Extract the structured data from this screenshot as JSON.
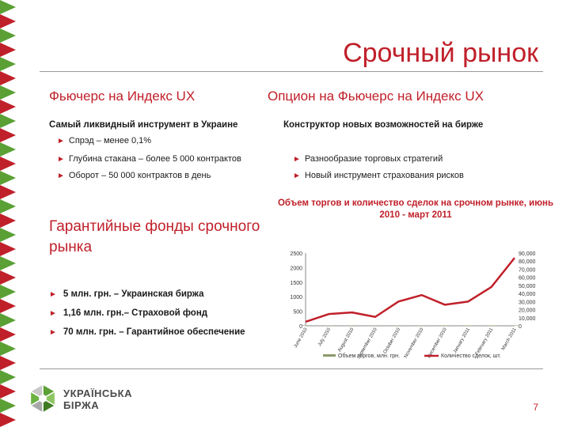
{
  "slide": {
    "title": "Срочный рынок",
    "page_number": "7"
  },
  "left": {
    "heading": "Фьючерс на Индекс UX",
    "subtitle": "Самый ликвидный инструмент в Украине",
    "bullets": [
      "Спрэд – менее 0,1%",
      "Глубина стакана – более 5 000 контрактов",
      "Оборот – 50 000 контрактов в день"
    ]
  },
  "right": {
    "heading": "Опцион на Фьючерс на Индекс UX",
    "subtitle": "Конструктор новых возможностей  на  бирже",
    "bullets": [
      "Разнообразие торговых стратегий",
      "Новый инструмент страхования рисков"
    ]
  },
  "funds": {
    "title": "Гарантийные фонды срочного рынка",
    "bullets": [
      "5 млн. грн. – Украинская биржа",
      "1,16 млн. грн.– Страховой фонд",
      "70 млн. грн. – Гарантийное обеспечение"
    ]
  },
  "chart_data": {
    "type": "bar",
    "title": "Объем торгов и количество сделок на срочном рынке, июнь 2010 - март 2011",
    "categories": [
      "June 2010",
      "July 2010",
      "August 2010",
      "September 2010",
      "October 2010",
      "November 2010",
      "December 2010",
      "January 2011",
      "February 2011",
      "March 2011"
    ],
    "ylim_left": [
      0,
      2500
    ],
    "yticks_left": [
      "0",
      "500",
      "1000",
      "1500",
      "2000",
      "2500"
    ],
    "ylim_right": [
      0,
      90000
    ],
    "yticks_right": [
      "0",
      "10,000",
      "20,000",
      "30,000",
      "40,000",
      "50,000",
      "60,000",
      "70,000",
      "80,000",
      "90,000"
    ],
    "series": [
      {
        "name": "Объем торгов, млн. грн.",
        "axis": "left",
        "color": "#8a9a6a",
        "values": [
          0,
          0,
          0,
          0,
          0,
          0,
          0,
          0,
          0,
          0
        ]
      },
      {
        "name": "Количество сделок, шт.",
        "axis": "right",
        "color": "#c0202a",
        "values": [
          5000,
          14500,
          16500,
          11000,
          30000,
          38000,
          26000,
          30000,
          48000,
          84000
        ]
      }
    ],
    "legend": "bottom"
  },
  "logo": {
    "line1": "УКРАЇНСЬКА",
    "line2": "БІРЖА"
  },
  "colors": {
    "accent": "#c0202a",
    "border_green": "#5aa035",
    "border_red": "#c0202a"
  }
}
